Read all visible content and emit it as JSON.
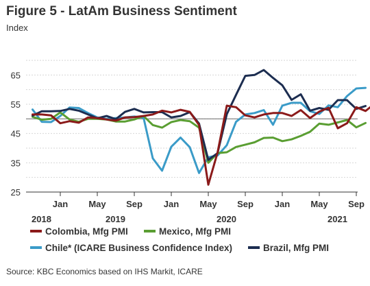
{
  "header": {
    "title": "Figure 5 - LatAm Business Sentiment",
    "subtitle": "Index"
  },
  "source": "Source: KBC Economics based on IHS Markit, ICARE",
  "chart_data": {
    "type": "line",
    "title": "Figure 5 - LatAm Business Sentiment",
    "ylabel": "Index",
    "ylim": [
      25,
      70
    ],
    "yticks": [
      25,
      35,
      45,
      55,
      65
    ],
    "reference_line": 50,
    "grid": "horizontal",
    "legend": "bottom",
    "x_start": "2018-10",
    "month_ticks": [
      {
        "label": "Jan",
        "date": "2019-01"
      },
      {
        "label": "May",
        "date": "2019-05"
      },
      {
        "label": "Sep",
        "date": "2019-09"
      },
      {
        "label": "Jan",
        "date": "2020-01"
      },
      {
        "label": "May",
        "date": "2020-05"
      },
      {
        "label": "Sep",
        "date": "2020-09"
      },
      {
        "label": "Jan",
        "date": "2021-01"
      },
      {
        "label": "May",
        "date": "2021-05"
      },
      {
        "label": "Sep",
        "date": "2021-09"
      }
    ],
    "year_labels": [
      {
        "label": "2018",
        "date": "2018-10"
      },
      {
        "label": "2019",
        "date": "2019-06"
      },
      {
        "label": "2020",
        "date": "2020-06"
      },
      {
        "label": "2021",
        "date": "2021-06"
      }
    ],
    "series": [
      {
        "name": "Colombia, Mfg PMI",
        "color": "#8b1a1a",
        "values": [
          51.5,
          51.5,
          51.2,
          48.5,
          49.2,
          48.7,
          50.5,
          50.3,
          49.8,
          49.4,
          50.5,
          50.6,
          51.0,
          51.5,
          52.8,
          52.2,
          53.1,
          52.4,
          47.9,
          27.5,
          38.5,
          54.5,
          54.0,
          51.2,
          50.5,
          51.5,
          52.0,
          52.0,
          51.0,
          53.0,
          50.3,
          52.5,
          53.8,
          46.8,
          48.5,
          54.0,
          52.7,
          55.2
        ]
      },
      {
        "name": "Mexico, Mfg PMI",
        "color": "#5a9e32",
        "values": [
          50.7,
          49.7,
          50.0,
          52.2,
          49.8,
          49.0,
          50.0,
          50.0,
          49.8,
          49.1,
          49.1,
          49.8,
          51.0,
          47.9,
          47.0,
          48.9,
          49.6,
          49.2,
          47.0,
          35.0,
          38.3,
          38.6,
          40.4,
          41.2,
          42.0,
          43.5,
          43.6,
          42.4,
          43.0,
          44.2,
          45.6,
          48.4,
          48.0,
          48.8,
          49.6,
          47.1,
          48.6
        ]
      },
      {
        "name": "Chile* (ICARE Business Confidence Index)",
        "color": "#3a9bc8",
        "values": [
          53.2,
          49.0,
          48.9,
          51.0,
          53.9,
          53.7,
          52.0,
          50.5,
          50.0,
          50.3,
          50.5,
          50.8,
          50.4,
          36.5,
          32.3,
          40.5,
          43.6,
          40.3,
          31.5,
          36.9,
          37.5,
          41.0,
          49.0,
          51.5,
          52.0,
          53.0,
          48.0,
          54.5,
          55.5,
          55.5,
          52.6,
          51.7,
          54.6,
          54.0,
          57.8,
          60.4,
          60.6
        ]
      },
      {
        "name": "Brazil, Mfg PMI",
        "color": "#1c2d50",
        "values": [
          51.1,
          52.6,
          52.6,
          52.7,
          53.4,
          52.8,
          51.5,
          50.2,
          51.0,
          49.9,
          52.4,
          53.4,
          52.2,
          52.3,
          52.3,
          50.5,
          51.0,
          52.3,
          48.4,
          36.0,
          38.3,
          51.6,
          58.2,
          64.7,
          65.0,
          66.7,
          64.0,
          61.5,
          56.5,
          58.4,
          52.8,
          53.7,
          53.1,
          56.4,
          56.4,
          53.4,
          54.4
        ]
      }
    ]
  }
}
